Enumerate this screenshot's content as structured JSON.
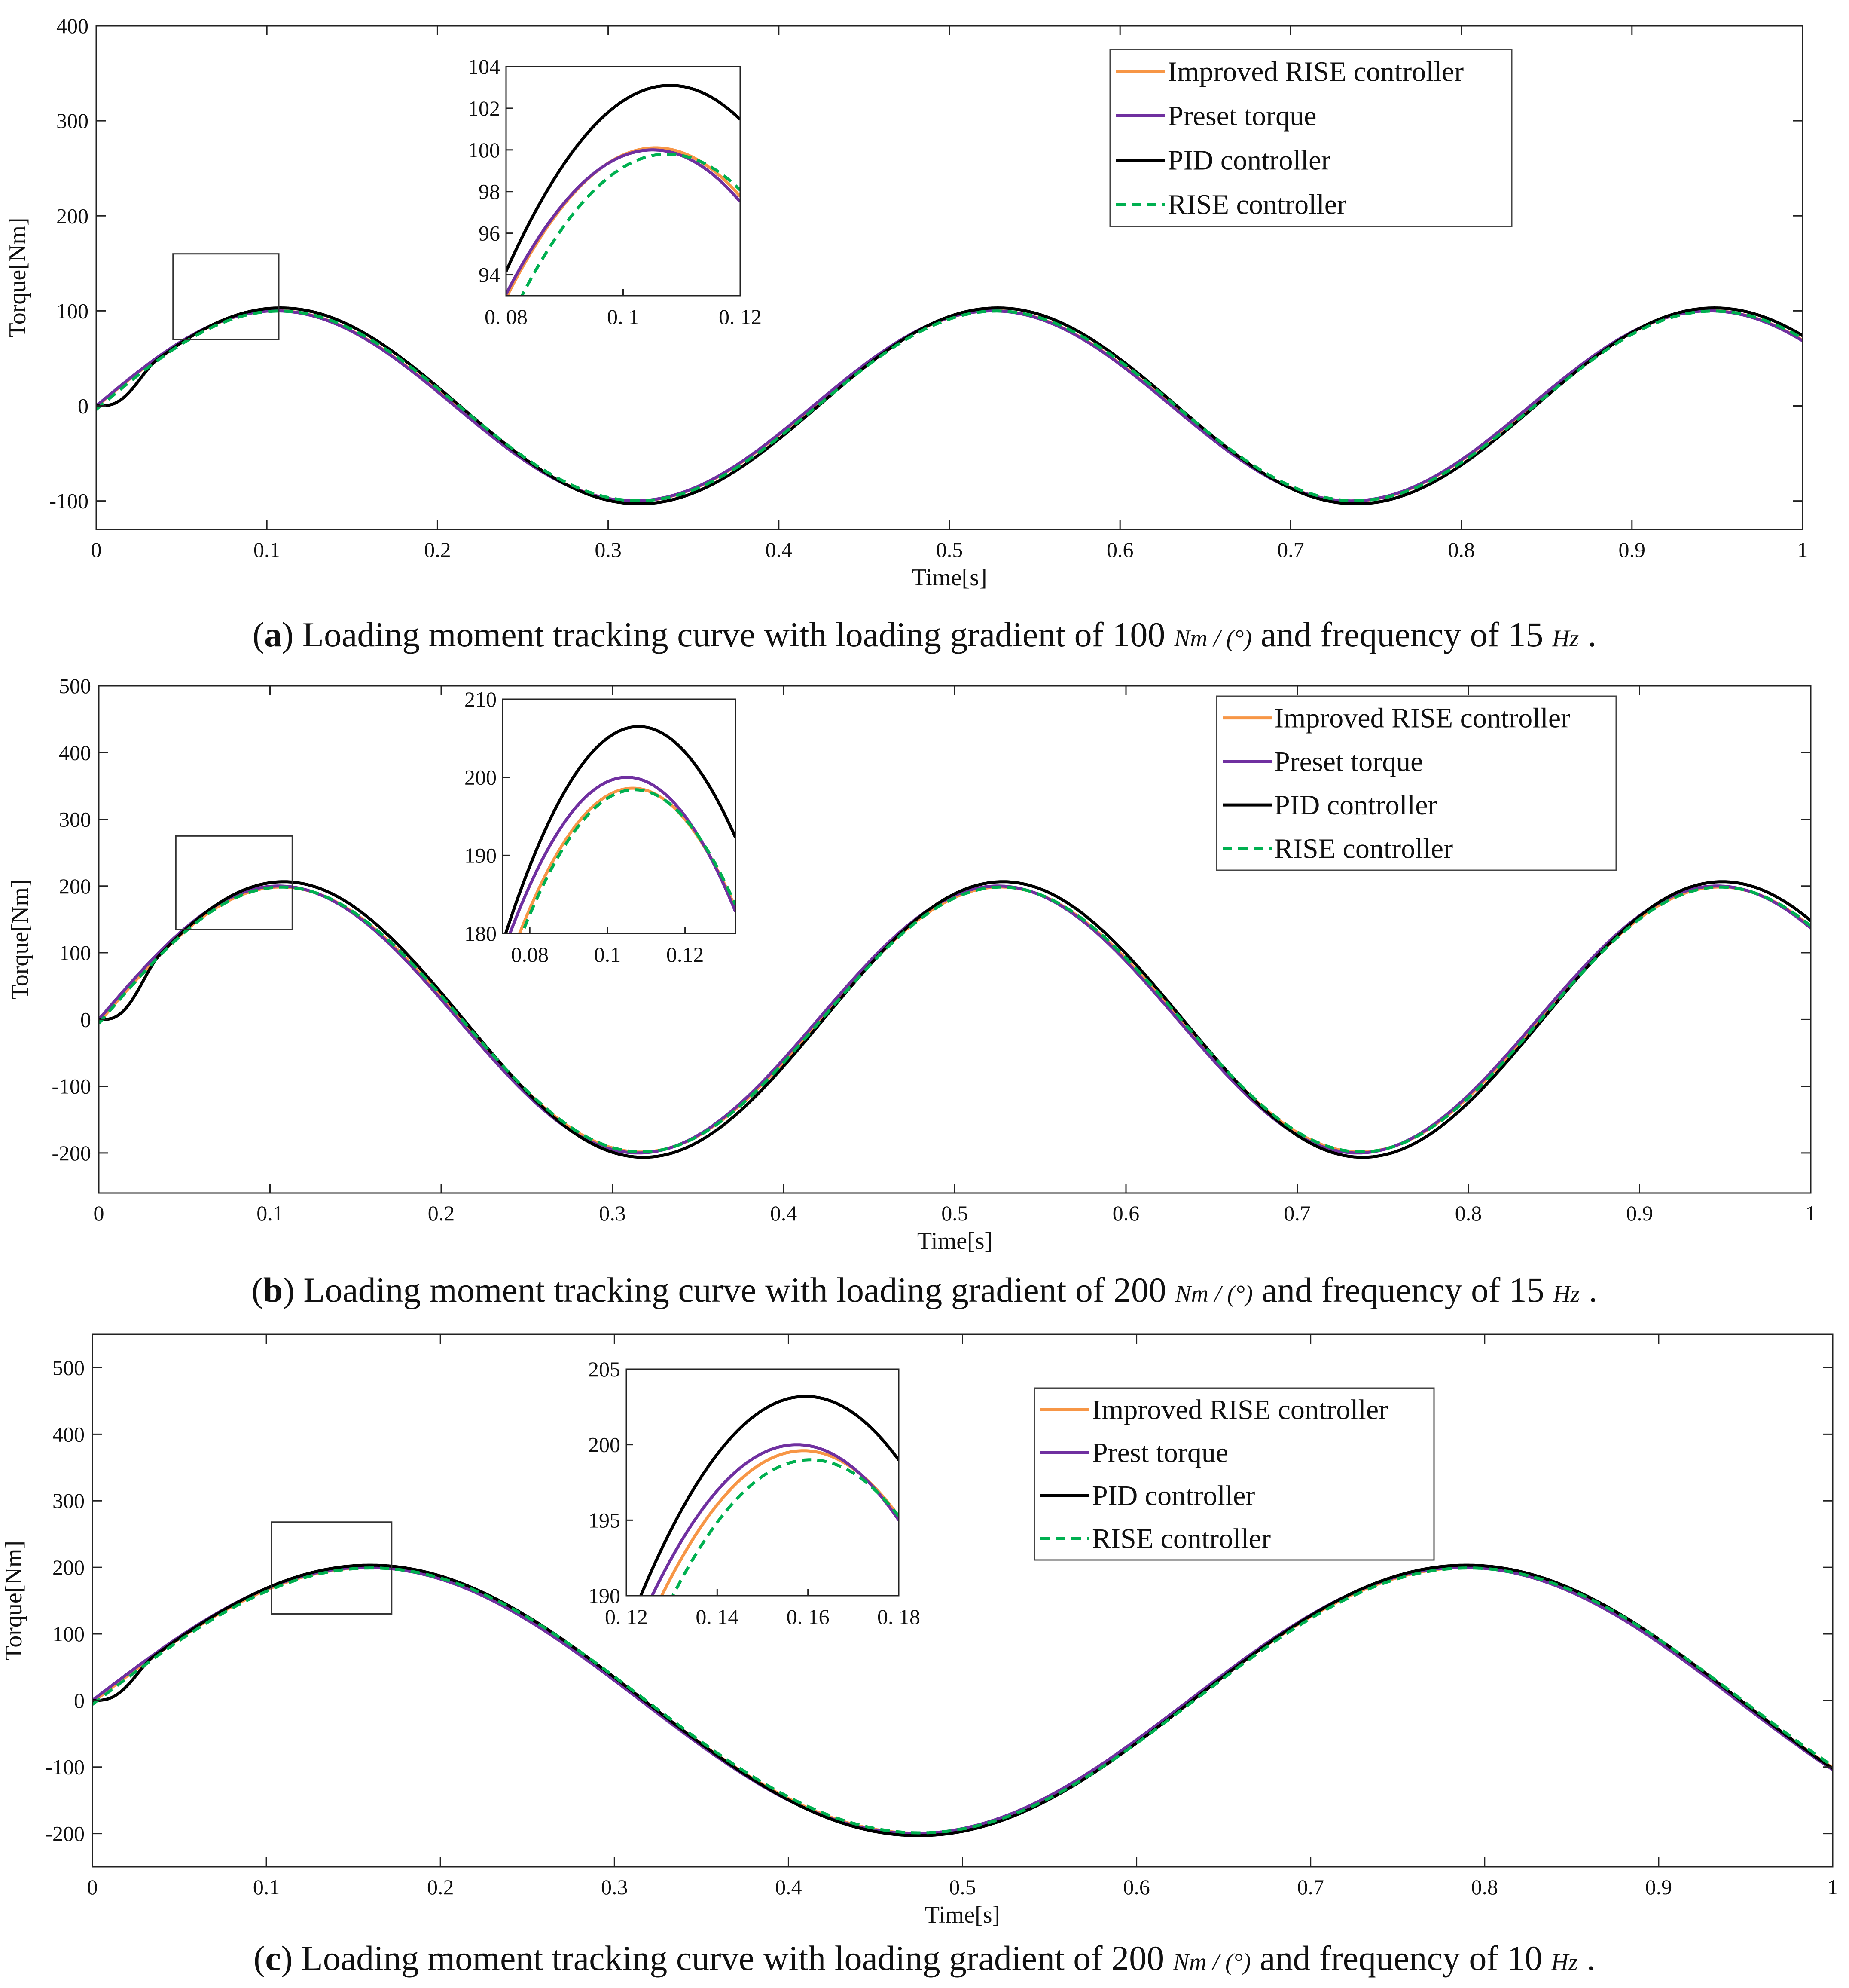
{
  "figure": {
    "captions": [
      {
        "letter": "a",
        "text_before": " Loading moment tracking curve with loading gradient of 100 ",
        "unit1": "Nm / (°)",
        "text_middle": " and frequency of 15 ",
        "unit2": "Hz",
        "text_end": " ."
      },
      {
        "letter": "b",
        "text_before": " Loading moment tracking curve with loading gradient of 200 ",
        "unit1": "Nm / (°)",
        "text_middle": " and frequency of 15 ",
        "unit2": "Hz",
        "text_end": " ."
      },
      {
        "letter": "c",
        "text_before": " Loading moment tracking curve with loading gradient of 200 ",
        "unit1": "Nm / (°)",
        "text_middle": " and frequency of 10 ",
        "unit2": "Hz",
        "text_end": " ."
      }
    ]
  },
  "colors": {
    "improved_rise": "#F79646",
    "preset": "#7030A0",
    "pid": "#000000",
    "rise": "#00B050"
  },
  "chart_data": [
    {
      "type": "line",
      "panel": "a",
      "xlabel": "Time[s]",
      "ylabel": "Torque[Nm]",
      "xlim": [
        0,
        1
      ],
      "ylim": [
        -130,
        400
      ],
      "xticks": [
        0,
        0.1,
        0.2,
        0.3,
        0.4,
        0.5,
        0.6,
        0.7,
        0.8,
        0.9,
        1
      ],
      "xtick_labels": [
        "0",
        "0.1",
        "0.2",
        "0.3",
        "0.4",
        "0.5",
        "0.6",
        "0.7",
        "0.8",
        "0.9",
        "1"
      ],
      "yticks": [
        -100,
        0,
        100,
        200,
        300,
        400
      ],
      "ytick_labels": [
        "-100",
        "0",
        "100",
        "200",
        "300",
        "400"
      ],
      "amplitude": 100,
      "frequency_hz": 15,
      "legend": [
        "Improved RISE controller",
        "Preset torque",
        "PID controller",
        "RISE controller"
      ],
      "legend_position": "top-right",
      "series": [
        {
          "name": "Improved RISE controller",
          "amp": 100.1,
          "lag": 0.0005,
          "startup": 0,
          "style": "solid",
          "color_key": "improved_rise"
        },
        {
          "name": "Preset torque",
          "amp": 100,
          "lag": 0,
          "startup": 0,
          "style": "solid",
          "color_key": "preset"
        },
        {
          "name": "PID controller",
          "amp": 103.1,
          "lag": 0.003,
          "startup": 0.035,
          "style": "solid",
          "color_key": "pid"
        },
        {
          "name": "RISE controller",
          "amp": 99.8,
          "lag": 0.0025,
          "startup": 0,
          "style": "dashed",
          "color_key": "rise"
        }
      ],
      "zoom_box": {
        "x": [
          0.045,
          0.107
        ],
        "y": [
          70,
          160
        ]
      },
      "inset": {
        "xlim": [
          0.08,
          0.12
        ],
        "ylim": [
          93,
          104
        ],
        "xticks": [
          0.08,
          0.1,
          0.12
        ],
        "xtick_labels": [
          "0. 08",
          "0. 1",
          "0. 12"
        ],
        "yticks": [
          94,
          96,
          98,
          100,
          102,
          104
        ],
        "ytick_labels": [
          "94",
          "96",
          "98",
          "100",
          "102",
          "104"
        ]
      }
    },
    {
      "type": "line",
      "panel": "b",
      "xlabel": "Time[s]",
      "ylabel": "Torque[Nm]",
      "xlim": [
        0,
        1
      ],
      "ylim": [
        -260,
        500
      ],
      "xticks": [
        0,
        0.1,
        0.2,
        0.3,
        0.4,
        0.5,
        0.6,
        0.7,
        0.8,
        0.9,
        1
      ],
      "xtick_labels": [
        "0",
        "0.1",
        "0.2",
        "0.3",
        "0.4",
        "0.5",
        "0.6",
        "0.7",
        "0.8",
        "0.9",
        "1"
      ],
      "yticks": [
        -200,
        -100,
        0,
        100,
        200,
        300,
        400,
        500
      ],
      "ytick_labels": [
        "-200",
        "-100",
        "0",
        "100",
        "200",
        "300",
        "400",
        "500"
      ],
      "amplitude": 200,
      "frequency_hz": 15,
      "legend": [
        "Improved RISE controller",
        "Preset torque",
        "PID controller",
        "RISE controller"
      ],
      "legend_position": "top-right",
      "series": [
        {
          "name": "Improved RISE controller",
          "amp": 198.6,
          "lag": 0.0015,
          "startup": 0,
          "style": "solid",
          "color_key": "improved_rise"
        },
        {
          "name": "Preset torque",
          "amp": 200,
          "lag": 0,
          "startup": 0,
          "style": "solid",
          "color_key": "preset"
        },
        {
          "name": "PID controller",
          "amp": 206.5,
          "lag": 0.003,
          "startup": 0.035,
          "style": "solid",
          "color_key": "pid"
        },
        {
          "name": "RISE controller",
          "amp": 198.4,
          "lag": 0.002,
          "startup": 0,
          "style": "dashed",
          "color_key": "rise"
        }
      ],
      "zoom_box": {
        "x": [
          0.045,
          0.113
        ],
        "y": [
          135,
          275
        ]
      },
      "inset": {
        "xlim": [
          0.073,
          0.133
        ],
        "ylim": [
          180,
          210
        ],
        "xticks": [
          0.08,
          0.1,
          0.12
        ],
        "xtick_labels": [
          "0.08",
          "0.1",
          "0.12"
        ],
        "yticks": [
          180,
          190,
          200,
          210
        ],
        "ytick_labels": [
          "180",
          "190",
          "200",
          "210"
        ]
      }
    },
    {
      "type": "line",
      "panel": "c",
      "xlabel": "Time[s]",
      "ylabel": "Torque[Nm]",
      "xlim": [
        0,
        1
      ],
      "ylim": [
        -250,
        550
      ],
      "xticks": [
        0,
        0.1,
        0.2,
        0.3,
        0.4,
        0.5,
        0.6,
        0.7,
        0.8,
        0.9,
        1
      ],
      "xtick_labels": [
        "0",
        "0.1",
        "0.2",
        "0.3",
        "0.4",
        "0.5",
        "0.6",
        "0.7",
        "0.8",
        "0.9",
        "1"
      ],
      "yticks": [
        -200,
        -100,
        0,
        100,
        200,
        300,
        400,
        500
      ],
      "ytick_labels": [
        "-200",
        "-100",
        "0",
        "100",
        "200",
        "300",
        "400",
        "500"
      ],
      "amplitude": 200,
      "frequency_hz": 10,
      "legend": [
        "Improved RISE controller",
        "Prest torque",
        "PID controller",
        "RISE controller"
      ],
      "legend_position": "top-right",
      "series": [
        {
          "name": "Improved RISE controller",
          "amp": 199.6,
          "lag": 0.0015,
          "startup": 0,
          "style": "solid",
          "color_key": "improved_rise"
        },
        {
          "name": "Prest torque",
          "amp": 200,
          "lag": 0,
          "startup": 0,
          "style": "solid",
          "color_key": "preset"
        },
        {
          "name": "PID controller",
          "amp": 203.2,
          "lag": 0.002,
          "startup": 0.035,
          "style": "solid",
          "color_key": "pid"
        },
        {
          "name": "RISE controller",
          "amp": 199,
          "lag": 0.003,
          "startup": 0,
          "style": "dashed",
          "color_key": "rise"
        }
      ],
      "zoom_box": {
        "x": [
          0.103,
          0.172
        ],
        "y": [
          130,
          268
        ]
      },
      "inset": {
        "xlim": [
          0.12,
          0.18
        ],
        "ylim": [
          190,
          205
        ],
        "xticks": [
          0.12,
          0.14,
          0.16,
          0.18
        ],
        "xtick_labels": [
          "0. 12",
          "0. 14",
          "0. 16",
          "0. 18"
        ],
        "yticks": [
          190,
          195,
          200,
          205
        ],
        "ytick_labels": [
          "190",
          "195",
          "200",
          "205"
        ]
      }
    }
  ]
}
